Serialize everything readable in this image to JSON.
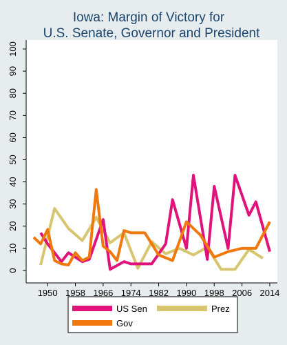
{
  "chart_data": {
    "type": "line",
    "title": [
      "Iowa: Margin of Victory for",
      "U.S. Senate, Governor and President"
    ],
    "xlabel": "",
    "ylabel": "",
    "xlim": [
      1946,
      2015
    ],
    "ylim": [
      0,
      100
    ],
    "x_ticks": [
      1950,
      1958,
      1966,
      1974,
      1982,
      1990,
      1998,
      2006,
      2014
    ],
    "x_tick_labels": [
      "1950",
      "1958",
      "1966",
      "1974",
      "1982",
      "1990",
      "1998",
      "2006",
      "2014"
    ],
    "y_ticks": [
      0,
      10,
      20,
      30,
      40,
      50,
      60,
      70,
      80,
      90,
      100
    ],
    "y_tick_labels": [
      "0",
      "10",
      "20",
      "30",
      "40",
      "50",
      "60",
      "70",
      "80",
      "90",
      "100"
    ],
    "grid": "none",
    "legend_position": "bottom",
    "series": [
      {
        "name": "US Sen",
        "color": "#e0127c",
        "x": [
          1948,
          1950,
          1954,
          1956,
          1960,
          1962,
          1966,
          1968,
          1972,
          1974,
          1978,
          1980,
          1984,
          1986,
          1990,
          1992,
          1996,
          1998,
          2002,
          2004,
          2008,
          2010,
          2014
        ],
        "y": [
          17,
          12,
          4,
          8,
          4,
          5,
          23,
          0.5,
          4,
          3,
          3,
          3,
          12,
          32,
          10,
          43,
          5,
          38,
          10,
          43,
          25,
          31,
          8.5
        ]
      },
      {
        "name": "Prez",
        "color": "#d7c56f",
        "x": [
          1948,
          1952,
          1956,
          1960,
          1964,
          1968,
          1972,
          1976,
          1980,
          1984,
          1988,
          1992,
          1996,
          2000,
          2004,
          2008,
          2012
        ],
        "y": [
          2.5,
          28,
          19,
          13.5,
          24,
          12.5,
          17,
          1,
          13,
          7.5,
          10,
          7,
          10.5,
          0.5,
          0.5,
          9.5,
          5.5
        ]
      },
      {
        "name": "Gov",
        "color": "#f0780c",
        "x": [
          1946,
          1948,
          1950,
          1952,
          1954,
          1956,
          1958,
          1960,
          1962,
          1964,
          1966,
          1968,
          1970,
          1972,
          1974,
          1978,
          1982,
          1986,
          1990,
          1994,
          1998,
          2002,
          2006,
          2010,
          2014
        ],
        "y": [
          15,
          12,
          18.5,
          4.5,
          3,
          2.5,
          8,
          4.5,
          6,
          36.5,
          11,
          8.5,
          4.5,
          18,
          17,
          17,
          7,
          4.5,
          22,
          16,
          6,
          8.5,
          10,
          10,
          22
        ]
      }
    ]
  }
}
